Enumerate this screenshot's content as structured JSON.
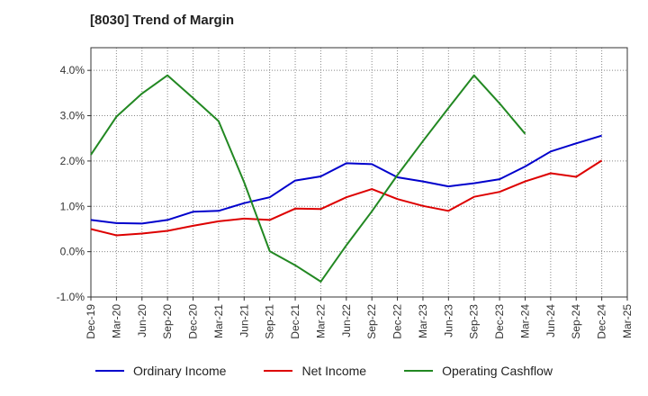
{
  "chart_data": {
    "type": "line",
    "title": "[8030]  Trend of Margin",
    "xlabel": "",
    "ylabel": "",
    "ylim": [
      -1.0,
      4.5
    ],
    "yticks": [
      "-1.0%",
      "0.0%",
      "1.0%",
      "2.0%",
      "3.0%",
      "4.0%"
    ],
    "ytick_values": [
      -1.0,
      0.0,
      1.0,
      2.0,
      3.0,
      4.0
    ],
    "categories": [
      "Dec-19",
      "Mar-20",
      "Jun-20",
      "Sep-20",
      "Dec-20",
      "Mar-21",
      "Jun-21",
      "Sep-21",
      "Dec-21",
      "Mar-22",
      "Jun-22",
      "Sep-22",
      "Dec-22",
      "Mar-23",
      "Jun-23",
      "Sep-23",
      "Dec-23",
      "Mar-24",
      "Jun-24",
      "Sep-24",
      "Dec-24",
      "Mar-25"
    ],
    "grid": true,
    "legend_position": "bottom",
    "series": [
      {
        "name": "Ordinary Income",
        "color": "#0000cc",
        "values": [
          0.7,
          0.63,
          0.62,
          0.7,
          0.88,
          0.9,
          1.07,
          1.2,
          1.57,
          1.66,
          1.95,
          1.93,
          1.64,
          1.55,
          1.44,
          1.51,
          1.6,
          1.88,
          2.21,
          2.39,
          2.56,
          null
        ]
      },
      {
        "name": "Net Income",
        "color": "#dd0000",
        "values": [
          0.5,
          0.36,
          0.4,
          0.46,
          0.57,
          0.67,
          0.73,
          0.7,
          0.95,
          0.94,
          1.2,
          1.38,
          1.16,
          1.01,
          0.9,
          1.21,
          1.32,
          1.55,
          1.73,
          1.65,
          2.01,
          null
        ]
      },
      {
        "name": "Operating Cashflow",
        "color": "#228822",
        "values": [
          2.14,
          2.98,
          3.49,
          3.89,
          3.39,
          2.88,
          1.53,
          0.01,
          -0.3,
          -0.66,
          0.14,
          0.89,
          1.69,
          2.44,
          3.17,
          3.89,
          3.27,
          2.6,
          null,
          null,
          null,
          null
        ]
      }
    ]
  }
}
